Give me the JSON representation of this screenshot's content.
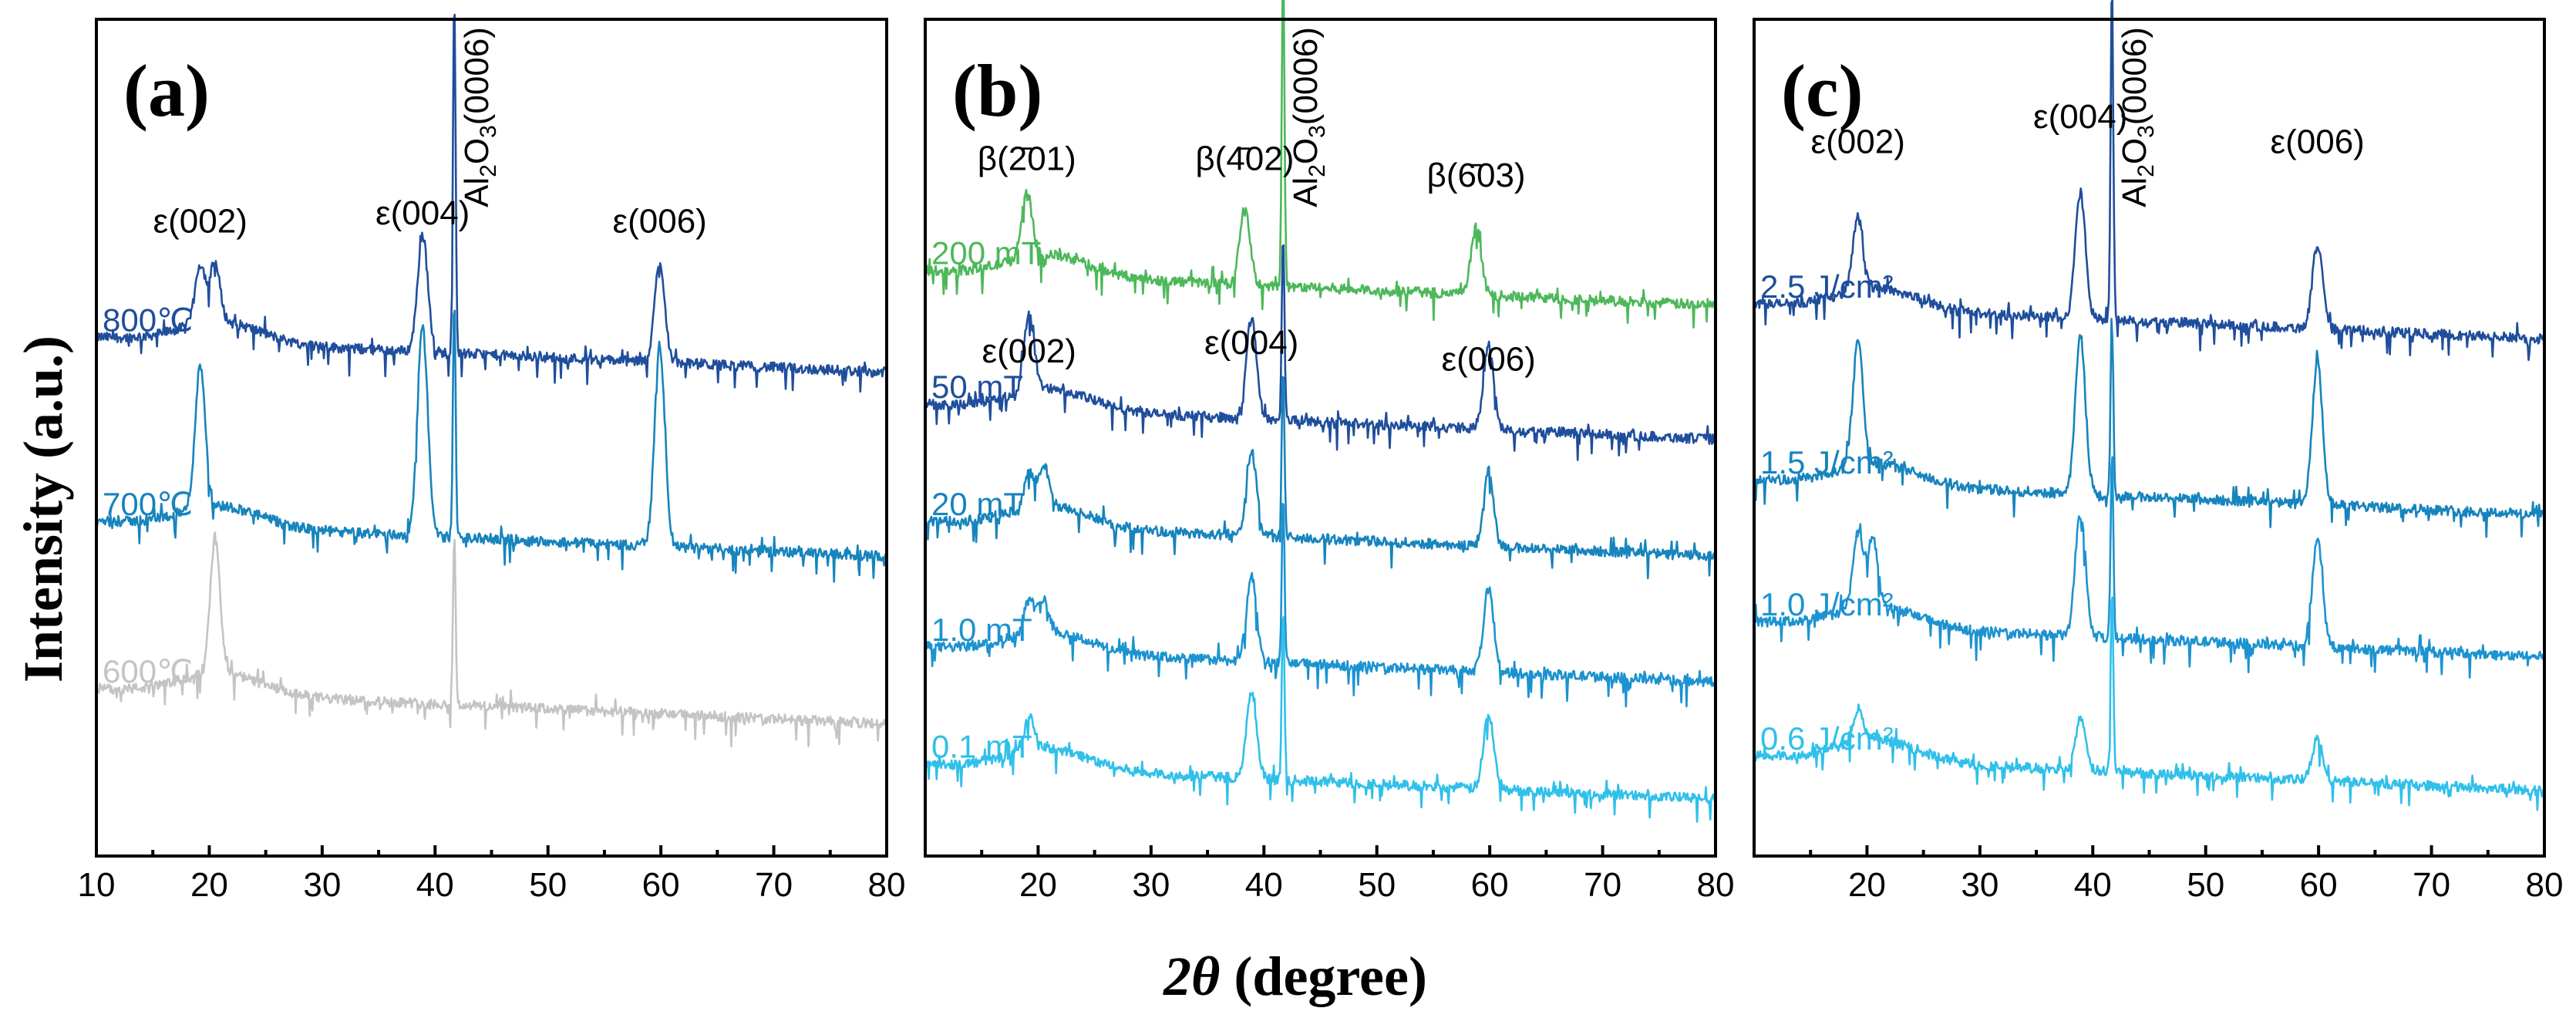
{
  "ylabel": "Intensity (a.u.)",
  "xlabel_italic": "2θ",
  "xlabel_rest": " (degree)",
  "chart_data": [
    {
      "type": "line",
      "panel": "(a)",
      "xlim": [
        10,
        80
      ],
      "xticks": [
        10,
        20,
        30,
        40,
        50,
        60,
        70,
        80
      ],
      "xlabel": "2θ (degree)",
      "ylabel": "Intensity (a.u.)",
      "series": [
        {
          "name": "800℃",
          "color": "#1f4e9c",
          "baseline": 0.62,
          "peaks": [
            [
              19.2,
              0.07
            ],
            [
              20.5,
              0.07
            ],
            [
              38.9,
              0.14
            ],
            [
              41.7,
              0.42
            ],
            [
              59.9,
              0.12
            ]
          ]
        },
        {
          "name": "700℃",
          "color": "#1784bd",
          "baseline": 0.4,
          "peaks": [
            [
              19.2,
              0.17
            ],
            [
              38.9,
              0.25
            ],
            [
              41.7,
              0.28
            ],
            [
              59.9,
              0.24
            ]
          ]
        },
        {
          "name": "600℃",
          "color": "#c4c4c4",
          "baseline": 0.2,
          "peaks": [
            [
              20.5,
              0.16
            ],
            [
              41.7,
              0.2
            ]
          ]
        }
      ],
      "annotations": [
        {
          "text": "ε(002)",
          "x": 19.2
        },
        {
          "text": "ε(004)",
          "x": 38.9
        },
        {
          "text": "ε(006)",
          "x": 59.9
        },
        {
          "text": "Al2O3(0006)",
          "x": 41.7,
          "rotated": true
        }
      ]
    },
    {
      "type": "line",
      "panel": "(b)",
      "xlim": [
        10,
        80
      ],
      "xticks": [
        20,
        30,
        40,
        50,
        60,
        70,
        80
      ],
      "xlabel": "2θ (degree)",
      "ylabel": "Intensity (a.u.)",
      "series": [
        {
          "name": "200 mT",
          "color": "#4cb85a",
          "baseline": 0.7,
          "peaks": [
            [
              19.0,
              0.08
            ],
            [
              38.3,
              0.09
            ],
            [
              41.7,
              0.38
            ],
            [
              58.8,
              0.08
            ]
          ]
        },
        {
          "name": "50 mT",
          "color": "#1f4e9c",
          "baseline": 0.54,
          "peaks": [
            [
              19.2,
              0.09
            ],
            [
              38.9,
              0.12
            ],
            [
              41.7,
              0.22
            ],
            [
              59.9,
              0.1
            ]
          ]
        },
        {
          "name": "20 mT",
          "color": "#1784bd",
          "baseline": 0.4,
          "peaks": [
            [
              19.2,
              0.04
            ],
            [
              20.5,
              0.05
            ],
            [
              38.9,
              0.1
            ],
            [
              41.7,
              0.2
            ],
            [
              59.9,
              0.09
            ]
          ]
        },
        {
          "name": "1.0 mT",
          "color": "#1c93d0",
          "baseline": 0.25,
          "peaks": [
            [
              19.2,
              0.04
            ],
            [
              20.5,
              0.04
            ],
            [
              38.9,
              0.1
            ],
            [
              41.7,
              0.2
            ],
            [
              59.9,
              0.1
            ]
          ]
        },
        {
          "name": "0.1 mT",
          "color": "#30c0ea",
          "baseline": 0.11,
          "peaks": [
            [
              19.2,
              0.04
            ],
            [
              38.9,
              0.1
            ],
            [
              41.7,
              0.2
            ],
            [
              59.9,
              0.09
            ]
          ]
        }
      ],
      "annotations": [
        {
          "text": "β(2̄01)",
          "x": 19.0
        },
        {
          "text": "β(4̄02)",
          "x": 38.3
        },
        {
          "text": "β(6̄03)",
          "x": 58.8
        },
        {
          "text": "ε(002)",
          "x": 19.2
        },
        {
          "text": "ε(004)",
          "x": 38.9
        },
        {
          "text": "ε(006)",
          "x": 59.9
        },
        {
          "text": "Al2O3(0006)",
          "x": 41.7,
          "rotated": true
        }
      ]
    },
    {
      "type": "line",
      "panel": "(c)",
      "xlim": [
        10,
        80
      ],
      "xticks": [
        20,
        30,
        40,
        50,
        60,
        70,
        80
      ],
      "xlabel": "2θ (degree)",
      "ylabel": "Intensity (a.u.)",
      "series": [
        {
          "name": "2.5 J/cm²",
          "color": "#1f4e9c",
          "baseline": 0.66,
          "peaks": [
            [
              19.2,
              0.09
            ],
            [
              38.9,
              0.15
            ],
            [
              41.7,
              0.4
            ],
            [
              59.9,
              0.1
            ]
          ]
        },
        {
          "name": "1.5 J/cm²",
          "color": "#1784bd",
          "baseline": 0.45,
          "peaks": [
            [
              19.2,
              0.15
            ],
            [
              38.9,
              0.19
            ],
            [
              41.7,
              0.22
            ],
            [
              59.9,
              0.17
            ]
          ]
        },
        {
          "name": "1.0 J/cm²",
          "color": "#1c93d0",
          "baseline": 0.28,
          "peaks": [
            [
              19.2,
              0.09
            ],
            [
              20.5,
              0.08
            ],
            [
              38.9,
              0.15
            ],
            [
              41.7,
              0.22
            ],
            [
              59.9,
              0.13
            ]
          ]
        },
        {
          "name": "0.6 J/cm²",
          "color": "#30c0ea",
          "baseline": 0.12,
          "peaks": [
            [
              19.2,
              0.04
            ],
            [
              38.9,
              0.06
            ],
            [
              41.7,
              0.22
            ],
            [
              59.9,
              0.05
            ]
          ]
        }
      ],
      "annotations": [
        {
          "text": "ε(002)",
          "x": 19.2
        },
        {
          "text": "ε(004)",
          "x": 38.9
        },
        {
          "text": "ε(006)",
          "x": 59.9
        },
        {
          "text": "Al2O3(0006)",
          "x": 41.7,
          "rotated": true
        }
      ]
    }
  ]
}
